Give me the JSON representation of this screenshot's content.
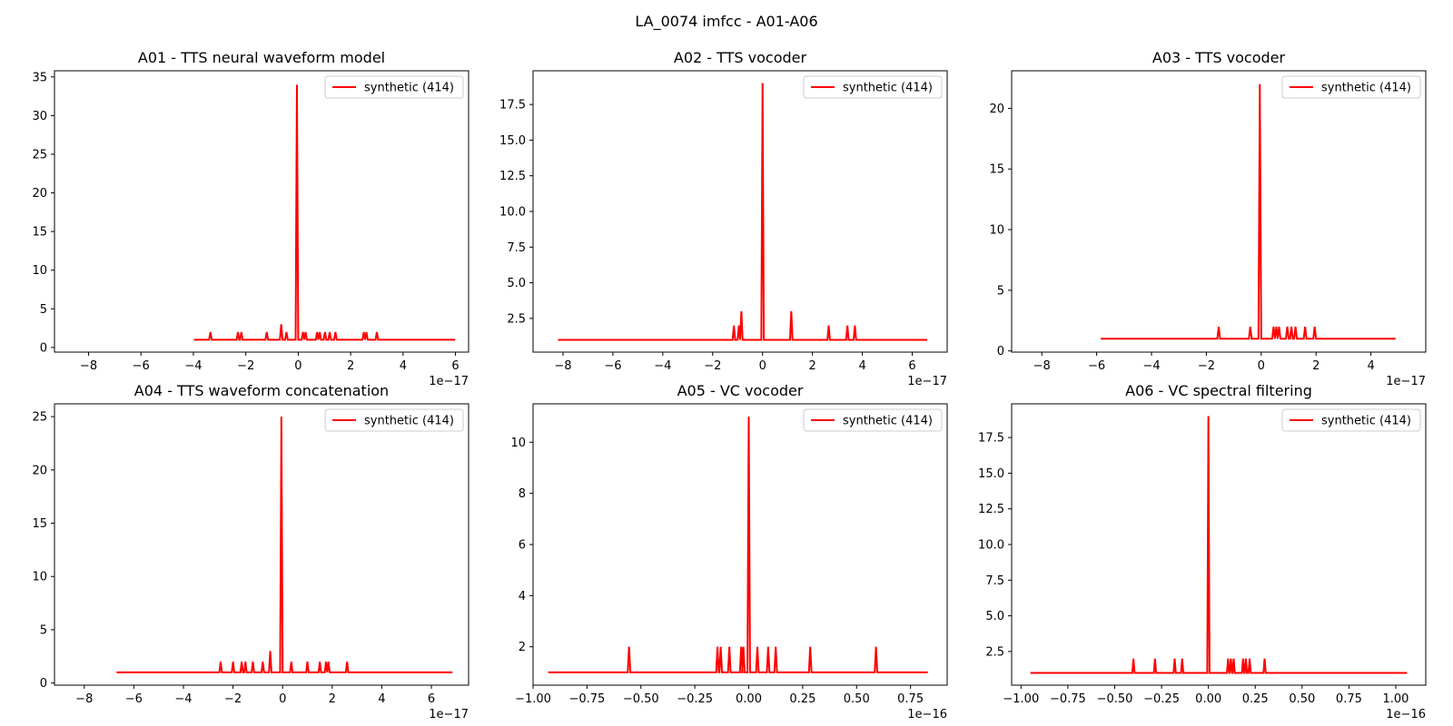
{
  "figure": {
    "suptitle": "LA_0074 imfcc - A01-A06"
  },
  "chart_data": [
    {
      "type": "line",
      "title": "A01 - TTS neural waveform model",
      "offset_label": "1e−17",
      "legend": {
        "entries": [
          "synthetic (414)"
        ],
        "position": "upper right"
      },
      "xlim": [
        -9.3,
        6.5
      ],
      "ylim": [
        -0.6,
        35.8
      ],
      "xticks": [
        -8,
        -6,
        -4,
        -2,
        0,
        2,
        4,
        6
      ],
      "xtick_labels": [
        "−8",
        "−6",
        "−4",
        "−2",
        "0",
        "2",
        "4",
        "6"
      ],
      "yticks": [
        0,
        5,
        10,
        15,
        20,
        25,
        30,
        35
      ],
      "ytick_labels": [
        "0",
        "5",
        "10",
        "15",
        "20",
        "25",
        "30",
        "35"
      ],
      "series": [
        {
          "name": "synthetic (414)",
          "color": "#ff0000",
          "baseline": 1,
          "x_range": [
            -3.98,
            5.99
          ],
          "peak_halfwidth": 0.05,
          "peaks": [
            [
              -3.35,
              2
            ],
            [
              -2.3,
              2
            ],
            [
              -2.17,
              2
            ],
            [
              -1.2,
              2
            ],
            [
              -0.65,
              3
            ],
            [
              -0.45,
              2
            ],
            [
              -0.05,
              34
            ],
            [
              0.18,
              2
            ],
            [
              0.28,
              2
            ],
            [
              0.72,
              2
            ],
            [
              0.82,
              2
            ],
            [
              1.02,
              2
            ],
            [
              1.2,
              2
            ],
            [
              1.42,
              2
            ],
            [
              2.5,
              2
            ],
            [
              2.6,
              2
            ],
            [
              3.0,
              2
            ]
          ]
        }
      ]
    },
    {
      "type": "line",
      "title": "A02 - TTS vocoder",
      "offset_label": "1e−17",
      "legend": {
        "entries": [
          "synthetic (414)"
        ],
        "position": "upper right"
      },
      "xlim": [
        -9.2,
        7.4
      ],
      "ylim": [
        0.14,
        19.86
      ],
      "xticks": [
        -8,
        -6,
        -4,
        -2,
        0,
        2,
        4,
        6
      ],
      "xtick_labels": [
        "−8",
        "−6",
        "−4",
        "−2",
        "0",
        "2",
        "4",
        "6"
      ],
      "yticks": [
        2.5,
        5.0,
        7.5,
        10.0,
        12.5,
        15.0,
        17.5
      ],
      "ytick_labels": [
        "2.5",
        "5.0",
        "7.5",
        "10.0",
        "12.5",
        "15.0",
        "17.5"
      ],
      "series": [
        {
          "name": "synthetic (414)",
          "color": "#ff0000",
          "baseline": 1,
          "x_range": [
            -8.2,
            6.6
          ],
          "peak_halfwidth": 0.05,
          "peaks": [
            [
              -1.15,
              2
            ],
            [
              -0.95,
              2
            ],
            [
              -0.85,
              3
            ],
            [
              0.0,
              19
            ],
            [
              1.15,
              3
            ],
            [
              2.65,
              2
            ],
            [
              3.4,
              2
            ],
            [
              3.7,
              2
            ]
          ]
        }
      ]
    },
    {
      "type": "line",
      "title": "A03 - TTS vocoder",
      "offset_label": "1e−17",
      "legend": {
        "entries": [
          "synthetic (414)"
        ],
        "position": "upper right"
      },
      "xlim": [
        -9.1,
        6.0
      ],
      "ylim": [
        -0.1,
        23.1
      ],
      "xticks": [
        -8,
        -6,
        -4,
        -2,
        0,
        2,
        4
      ],
      "xtick_labels": [
        "−8",
        "−6",
        "−4",
        "−2",
        "0",
        "2",
        "4"
      ],
      "yticks": [
        0,
        5,
        10,
        15,
        20
      ],
      "ytick_labels": [
        "0",
        "5",
        "10",
        "15",
        "20"
      ],
      "series": [
        {
          "name": "synthetic (414)",
          "color": "#ff0000",
          "baseline": 1,
          "x_range": [
            -5.85,
            4.9
          ],
          "peak_halfwidth": 0.05,
          "peaks": [
            [
              -1.55,
              2
            ],
            [
              -0.4,
              2
            ],
            [
              -0.05,
              22
            ],
            [
              0.45,
              2
            ],
            [
              0.55,
              2
            ],
            [
              0.65,
              2
            ],
            [
              0.95,
              2
            ],
            [
              1.1,
              2
            ],
            [
              1.25,
              2
            ],
            [
              1.6,
              2
            ],
            [
              1.95,
              2
            ]
          ]
        }
      ]
    },
    {
      "type": "line",
      "title": "A04 - TTS waveform concatenation",
      "offset_label": "1e−17",
      "legend": {
        "entries": [
          "synthetic (414)"
        ],
        "position": "upper right"
      },
      "xlim": [
        -9.2,
        7.5
      ],
      "ylim": [
        -0.2,
        26.2
      ],
      "xticks": [
        -8,
        -6,
        -4,
        -2,
        0,
        2,
        4,
        6
      ],
      "xtick_labels": [
        "−8",
        "−6",
        "−4",
        "−2",
        "0",
        "2",
        "4",
        "6"
      ],
      "yticks": [
        0,
        5,
        10,
        15,
        20,
        25
      ],
      "ytick_labels": [
        "0",
        "5",
        "10",
        "15",
        "20",
        "25"
      ],
      "series": [
        {
          "name": "synthetic (414)",
          "color": "#ff0000",
          "baseline": 1,
          "x_range": [
            -6.7,
            6.85
          ],
          "peak_halfwidth": 0.05,
          "peaks": [
            [
              -2.5,
              2
            ],
            [
              -2.0,
              2
            ],
            [
              -1.65,
              2
            ],
            [
              -1.5,
              2
            ],
            [
              -1.2,
              2
            ],
            [
              -0.8,
              2
            ],
            [
              -0.5,
              3
            ],
            [
              -0.05,
              25
            ],
            [
              0.35,
              2
            ],
            [
              1.0,
              2
            ],
            [
              1.5,
              2
            ],
            [
              1.75,
              2
            ],
            [
              1.85,
              2
            ],
            [
              2.6,
              2
            ]
          ]
        }
      ]
    },
    {
      "type": "line",
      "title": "A05 - VC vocoder",
      "offset_label": "1e−16",
      "legend": {
        "entries": [
          "synthetic (414)"
        ],
        "position": "upper right"
      },
      "xlim": [
        -1.0,
        0.92
      ],
      "ylim": [
        0.5,
        11.5
      ],
      "xticks": [
        -1.0,
        -0.75,
        -0.5,
        -0.25,
        0.0,
        0.25,
        0.5,
        0.75
      ],
      "xtick_labels": [
        "−1.00",
        "−0.75",
        "−0.50",
        "−0.25",
        "0.00",
        "0.25",
        "0.50",
        "0.75"
      ],
      "yticks": [
        2,
        4,
        6,
        8,
        10
      ],
      "ytick_labels": [
        "2",
        "4",
        "6",
        "8",
        "10"
      ],
      "series": [
        {
          "name": "synthetic (414)",
          "color": "#ff0000",
          "baseline": 1,
          "x_range": [
            -0.93,
            0.83
          ],
          "peak_halfwidth": 0.006,
          "peaks": [
            [
              -0.555,
              2
            ],
            [
              -0.145,
              2
            ],
            [
              -0.13,
              2
            ],
            [
              -0.09,
              2
            ],
            [
              -0.035,
              2
            ],
            [
              -0.025,
              2
            ],
            [
              0.0,
              11
            ],
            [
              0.04,
              2
            ],
            [
              0.09,
              2
            ],
            [
              0.125,
              2
            ],
            [
              0.285,
              2
            ],
            [
              0.59,
              2
            ]
          ]
        }
      ]
    },
    {
      "type": "line",
      "title": "A06 - VC spectral filtering",
      "offset_label": "1e−16",
      "legend": {
        "entries": [
          "synthetic (414)"
        ],
        "position": "upper right"
      },
      "xlim": [
        -1.05,
        1.16
      ],
      "ylim": [
        0.14,
        19.86
      ],
      "xticks": [
        -1.0,
        -0.75,
        -0.5,
        -0.25,
        0.0,
        0.25,
        0.5,
        0.75,
        1.0
      ],
      "xtick_labels": [
        "−1.00",
        "−0.75",
        "−0.50",
        "−0.25",
        "0.00",
        "0.25",
        "0.50",
        "0.75",
        "1.00"
      ],
      "yticks": [
        2.5,
        5.0,
        7.5,
        10.0,
        12.5,
        15.0,
        17.5
      ],
      "ytick_labels": [
        "2.5",
        "5.0",
        "7.5",
        "10.0",
        "12.5",
        "15.0",
        "17.5"
      ],
      "series": [
        {
          "name": "synthetic (414)",
          "color": "#ff0000",
          "baseline": 1,
          "x_range": [
            -0.95,
            1.06
          ],
          "peak_halfwidth": 0.006,
          "peaks": [
            [
              -0.4,
              2
            ],
            [
              -0.285,
              2
            ],
            [
              -0.18,
              2
            ],
            [
              -0.14,
              2
            ],
            [
              0.0,
              19
            ],
            [
              0.105,
              2
            ],
            [
              0.12,
              2
            ],
            [
              0.135,
              2
            ],
            [
              0.185,
              2
            ],
            [
              0.2,
              2
            ],
            [
              0.22,
              2
            ],
            [
              0.3,
              2
            ]
          ]
        }
      ]
    }
  ]
}
